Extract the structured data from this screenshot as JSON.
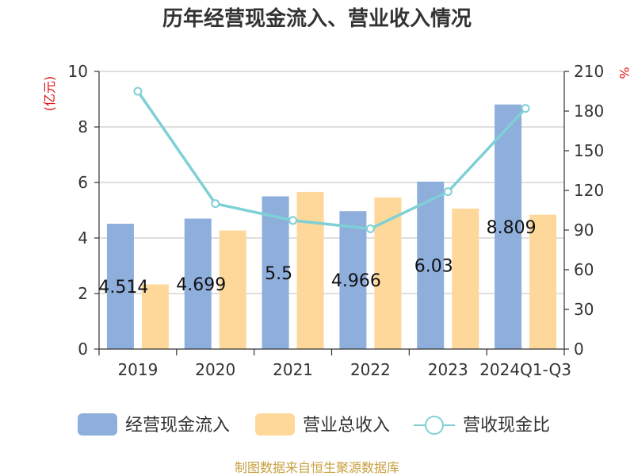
{
  "chart_data": {
    "type": "bar",
    "title": "历年经营现金流入、营业收入情况",
    "categories": [
      "2019",
      "2020",
      "2021",
      "2022",
      "2023",
      "2024Q1-Q3"
    ],
    "series": [
      {
        "name": "经营现金流入",
        "type": "bar",
        "axis": "left",
        "color": "#8eaedc",
        "values": [
          4.514,
          4.699,
          5.5,
          4.966,
          6.03,
          8.809
        ],
        "labels": [
          "4.514",
          "4.699",
          "5.5",
          "4.966",
          "6.03",
          "8.809"
        ]
      },
      {
        "name": "营业总收入",
        "type": "bar",
        "axis": "left",
        "color": "#fed89a",
        "values": [
          2.33,
          4.27,
          5.66,
          5.46,
          5.06,
          4.84
        ]
      },
      {
        "name": "营收现金比",
        "type": "line",
        "axis": "right",
        "color": "#7fd0d6",
        "values": [
          195.0,
          110.0,
          97.3,
          91.0,
          119.0,
          182.0
        ]
      }
    ],
    "left_axis": {
      "unit": "(亿元)",
      "ylim": [
        0,
        10
      ],
      "ticks": [
        "0",
        "2",
        "4",
        "6",
        "8",
        "10"
      ]
    },
    "right_axis": {
      "unit": "%",
      "ylim": [
        0,
        210
      ],
      "ticks": [
        "0",
        "30",
        "60",
        "90",
        "120",
        "150",
        "180",
        "210"
      ]
    },
    "grid": true,
    "legend_position": "bottom"
  },
  "footer": {
    "source": "制图数据来自恒生聚源数据库"
  }
}
